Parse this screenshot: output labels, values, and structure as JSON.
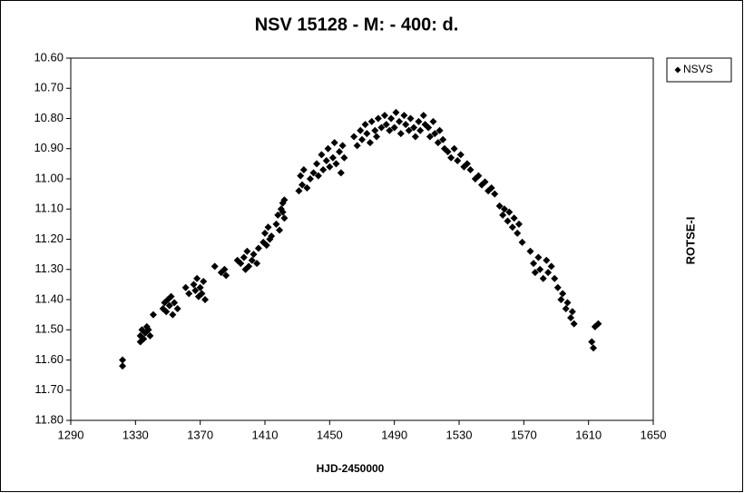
{
  "chart_data": {
    "type": "scatter",
    "title": "NSV 15128 - M: - 400: d.",
    "x_label": "HJD-2450000",
    "y2_label": "ROTSE-I",
    "legend": "right",
    "grid": false,
    "xlim": [
      1290,
      1650
    ],
    "xticks": [
      1290,
      1330,
      1370,
      1410,
      1450,
      1490,
      1530,
      1570,
      1610,
      1650
    ],
    "ylim": [
      11.8,
      10.6
    ],
    "yticks": [
      {
        "value": 10.6,
        "label": "10.60"
      },
      {
        "value": 10.7,
        "label": "10.70"
      },
      {
        "value": 10.8,
        "label": "10.80"
      },
      {
        "value": 10.9,
        "label": "10.90"
      },
      {
        "value": 11.0,
        "label": "11.00"
      },
      {
        "value": 11.1,
        "label": "11.10"
      },
      {
        "value": 11.2,
        "label": "11.20"
      },
      {
        "value": 11.3,
        "label": "11.30"
      },
      {
        "value": 11.4,
        "label": "11.40"
      },
      {
        "value": 11.5,
        "label": "11.50"
      },
      {
        "value": 11.6,
        "label": "11.60"
      },
      {
        "value": 11.7,
        "label": "11.70"
      },
      {
        "value": 11.8,
        "label": "11.80"
      }
    ],
    "x": [
      1322,
      1322,
      1333,
      1333,
      1334,
      1335,
      1336,
      1337,
      1338,
      1339,
      1341,
      1347,
      1348,
      1349,
      1350,
      1351,
      1352,
      1353,
      1354,
      1356,
      1361,
      1363,
      1366,
      1367,
      1368,
      1369,
      1370,
      1371,
      1372,
      1373,
      1379,
      1383,
      1385,
      1386,
      1393,
      1395,
      1397,
      1398,
      1399,
      1400,
      1402,
      1403,
      1405,
      1406,
      1409,
      1410,
      1411,
      1412,
      1413,
      1414,
      1417,
      1418,
      1419,
      1420,
      1421,
      1422,
      1422,
      1421,
      1431,
      1432,
      1433,
      1434,
      1436,
      1438,
      1440,
      1442,
      1443,
      1445,
      1446,
      1448,
      1449,
      1450,
      1452,
      1453,
      1454,
      1456,
      1457,
      1458,
      1459,
      1465,
      1467,
      1469,
      1470,
      1472,
      1473,
      1475,
      1476,
      1478,
      1479,
      1480,
      1482,
      1484,
      1485,
      1487,
      1488,
      1490,
      1491,
      1493,
      1494,
      1496,
      1497,
      1499,
      1500,
      1502,
      1503,
      1505,
      1506,
      1508,
      1509,
      1511,
      1512,
      1514,
      1515,
      1517,
      1518,
      1520,
      1521,
      1523,
      1525,
      1527,
      1529,
      1531,
      1533,
      1535,
      1537,
      1540,
      1542,
      1544,
      1546,
      1548,
      1550,
      1552,
      1555,
      1557,
      1558,
      1560,
      1561,
      1563,
      1564,
      1566,
      1567,
      1569,
      1574,
      1576,
      1577,
      1579,
      1580,
      1582,
      1584,
      1585,
      1587,
      1589,
      1591,
      1593,
      1594,
      1596,
      1597,
      1599,
      1600,
      1601,
      1612,
      1613,
      1614,
      1616
    ],
    "series": [
      {
        "name": "NSVS",
        "color": "#000000",
        "values": [
          11.6,
          11.62,
          11.52,
          11.54,
          11.5,
          11.53,
          11.51,
          11.49,
          11.5,
          11.52,
          11.45,
          11.43,
          11.41,
          11.44,
          11.4,
          11.42,
          11.39,
          11.45,
          11.41,
          11.43,
          11.36,
          11.38,
          11.35,
          11.37,
          11.33,
          11.39,
          11.36,
          11.38,
          11.34,
          11.4,
          11.29,
          11.31,
          11.3,
          11.32,
          11.27,
          11.28,
          11.26,
          11.3,
          11.24,
          11.29,
          11.27,
          11.25,
          11.28,
          11.23,
          11.21,
          11.18,
          11.22,
          11.16,
          11.2,
          11.19,
          11.15,
          11.12,
          11.17,
          11.1,
          11.08,
          11.13,
          11.07,
          11.11,
          11.04,
          10.99,
          11.02,
          10.97,
          11.03,
          11.0,
          10.98,
          10.95,
          10.99,
          10.92,
          10.97,
          10.94,
          10.9,
          10.96,
          10.93,
          10.88,
          10.95,
          10.91,
          10.98,
          10.89,
          10.93,
          10.86,
          10.89,
          10.84,
          10.87,
          10.82,
          10.85,
          10.88,
          10.81,
          10.84,
          10.86,
          10.8,
          10.83,
          10.79,
          10.82,
          10.84,
          10.8,
          10.83,
          10.78,
          10.81,
          10.85,
          10.79,
          10.82,
          10.84,
          10.8,
          10.83,
          10.86,
          10.81,
          10.84,
          10.79,
          10.82,
          10.83,
          10.86,
          10.81,
          10.85,
          10.88,
          10.84,
          10.87,
          10.9,
          10.91,
          10.93,
          10.9,
          10.94,
          10.92,
          10.96,
          10.95,
          10.97,
          11.0,
          10.99,
          11.02,
          11.01,
          11.04,
          11.03,
          11.05,
          11.09,
          11.12,
          11.1,
          11.14,
          11.11,
          11.16,
          11.13,
          11.18,
          11.15,
          11.21,
          11.24,
          11.28,
          11.31,
          11.26,
          11.3,
          11.33,
          11.27,
          11.31,
          11.29,
          11.33,
          11.36,
          11.4,
          11.38,
          11.43,
          11.41,
          11.46,
          11.44,
          11.48,
          11.54,
          11.56,
          11.49,
          11.48
        ]
      }
    ]
  }
}
